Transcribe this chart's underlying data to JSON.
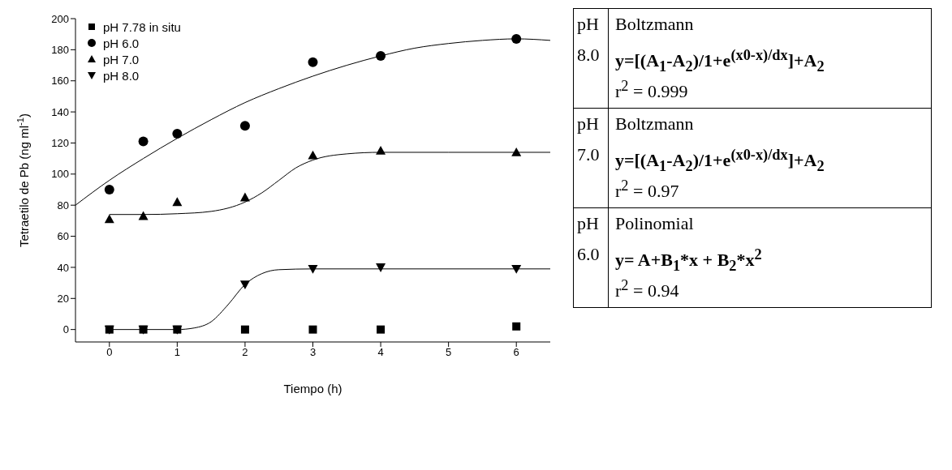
{
  "chart_data": [
    {
      "type": "scatter",
      "xlabel": "Tiempo (h)",
      "ylabel": "Tetraetilo de Pb (ng ml$^{-1}$)",
      "xlim": [
        -0.5,
        6.5
      ],
      "xticks": [
        0,
        1,
        2,
        3,
        4,
        5,
        6
      ],
      "ylim": [
        -8,
        200
      ],
      "yticks": [
        0,
        20,
        40,
        60,
        80,
        100,
        120,
        140,
        160,
        180,
        200
      ],
      "legend": "top left",
      "series": [
        {
          "name": "pH 7.78 in situ",
          "type": "scatter",
          "marker": "square",
          "color": "#000000",
          "x": [
            0,
            0.5,
            1,
            2,
            3,
            4,
            6
          ],
          "values": [
            0,
            0,
            0,
            0,
            0,
            0,
            2
          ]
        },
        {
          "name": "pH 6.0",
          "type": "scatter",
          "marker": "circle",
          "color": "#000000",
          "x": [
            0,
            0.5,
            1,
            2,
            3,
            4,
            6
          ],
          "values": [
            90,
            121,
            126,
            131,
            172,
            176,
            187
          ]
        },
        {
          "name": "pH 7.0",
          "type": "scatter",
          "marker": "triangle",
          "color": "#000000",
          "x": [
            0,
            0.5,
            1,
            2,
            3,
            4,
            6
          ],
          "values": [
            71,
            73,
            82,
            85,
            112,
            115,
            114
          ]
        },
        {
          "name": "pH 8.0",
          "type": "scatter",
          "marker": "triangle-down",
          "color": "#000000",
          "x": [
            0,
            0.5,
            1,
            2,
            3,
            4,
            6
          ],
          "values": [
            0,
            0,
            0,
            29,
            39,
            40,
            39
          ]
        },
        {
          "type": "line",
          "marker": "none",
          "color": "#000000",
          "x": [
            -0.5,
            0,
            0.5,
            1,
            1.5,
            2,
            2.5,
            3,
            3.5,
            4,
            4.5,
            5,
            5.5,
            6,
            6.5
          ],
          "values": [
            80,
            96,
            110,
            123,
            135,
            146,
            155,
            163,
            170,
            176,
            181,
            184,
            186,
            187,
            186
          ]
        },
        {
          "type": "line",
          "marker": "none",
          "color": "#000000",
          "x": [
            0,
            0.5,
            1,
            1.5,
            2,
            2.25,
            2.5,
            2.75,
            3,
            3.5,
            4,
            5,
            6.5
          ],
          "values": [
            74,
            74,
            74.5,
            76,
            82,
            88,
            96,
            104,
            109,
            113,
            114,
            114,
            114
          ]
        },
        {
          "type": "line",
          "marker": "none",
          "color": "#000000",
          "x": [
            0,
            1,
            1.25,
            1.5,
            1.75,
            2,
            2.25,
            2.5,
            3,
            4,
            6.5
          ],
          "values": [
            0,
            0,
            1,
            5,
            16,
            29,
            36,
            38.5,
            39,
            39,
            39
          ]
        }
      ]
    },
    {
      "type": "other",
      "annotations": [
        "pH",
        "8.0",
        "Boltzmann",
        "y=[(A$_{1}$-A$_{2}$)/1+e$^{(x0-x)/dx}$]+A$_{2}$",
        "r$^{2}$ =  0.999",
        "pH",
        "7.0",
        "Boltzmann",
        "y=[(A$_{1}$-A$_{2}$)/1+e$^{(x0-x)/dx}$]+A$_{2}$",
        "r$^{2}$ =  0.97",
        "pH",
        "6.0",
        "Polinomial",
        "y= A+B$_{1}$*x + B$_{2}$*x$^{2}$",
        "r$^{2}$ = 0.94"
      ]
    }
  ]
}
